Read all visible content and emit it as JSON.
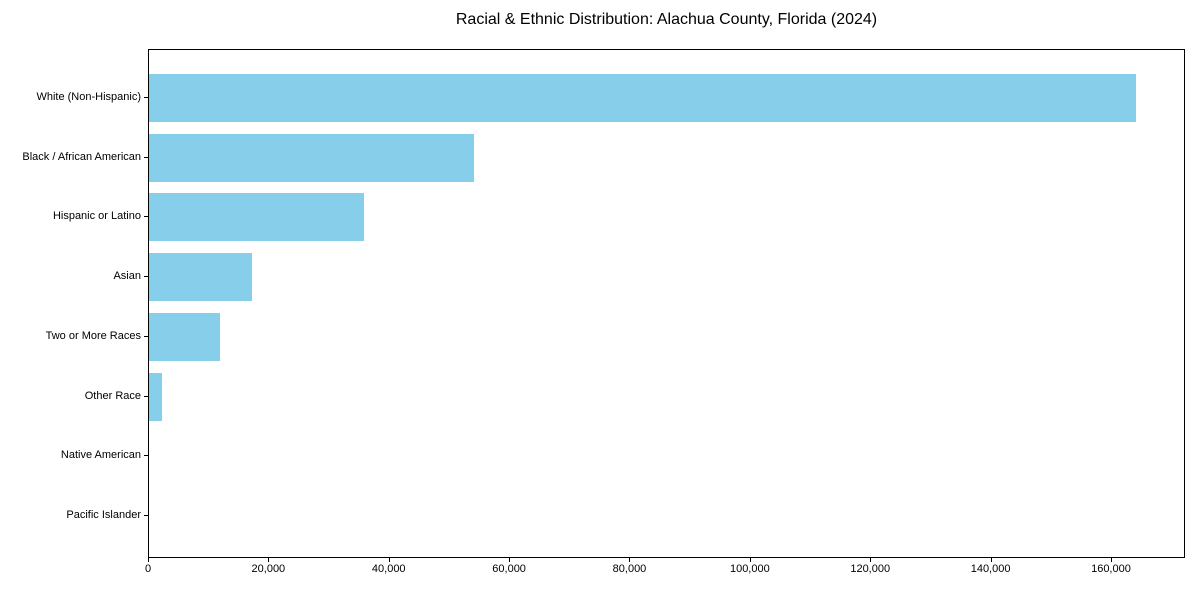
{
  "chart_data": {
    "type": "bar",
    "orientation": "horizontal",
    "title": "Racial & Ethnic Distribution: Alachua County, Florida (2024)",
    "categories": [
      "White (Non-Hispanic)",
      "Black / African American",
      "Hispanic or Latino",
      "Asian",
      "Two or More Races",
      "Other Race",
      "Native American",
      "Pacific Islander"
    ],
    "values": [
      164000,
      54000,
      35700,
      17100,
      11800,
      2200,
      0,
      0
    ],
    "xlabel": "",
    "ylabel": "",
    "xlim": [
      0,
      172300
    ],
    "xticks": [
      0,
      20000,
      40000,
      60000,
      80000,
      100000,
      120000,
      140000,
      160000
    ],
    "xtick_labels": [
      "0",
      "20,000",
      "40,000",
      "60,000",
      "80,000",
      "100,000",
      "120,000",
      "140,000",
      "160,000"
    ],
    "bar_color": "#87CEEB",
    "text_color": "#000000",
    "spine_color": "#000000",
    "grid": false,
    "legend_position": "none"
  }
}
